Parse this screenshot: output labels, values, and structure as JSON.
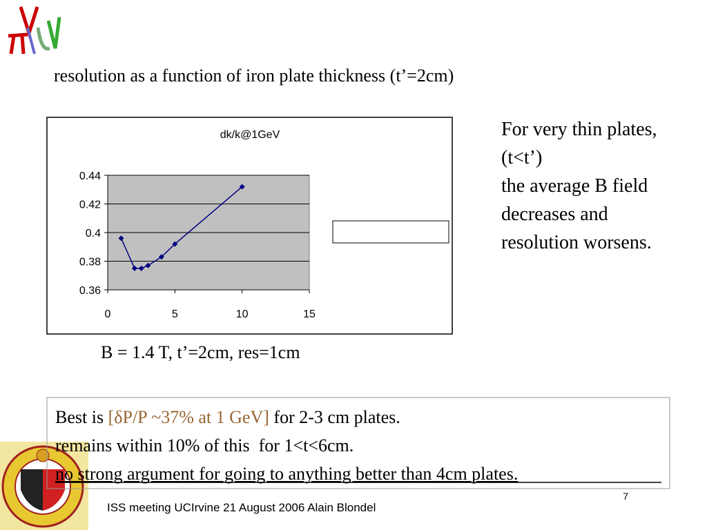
{
  "slide": {
    "title": "resolution as a function of iron plate thickness (t’=2cm)",
    "side_note": [
      "For very thin plates,",
      "(t<t’)",
      "the average B field",
      "decreases and",
      "resolution worsens."
    ],
    "caption": "B = 1.4 T, t’=2cm, res=1cm",
    "box": {
      "line1": [
        "Best is",
        "[δP/P ~37% at 1 GeV]",
        "for 2-3 cm plates."
      ],
      "line2": "remains within 10% of this  for 1<t<6cm.",
      "line3": "no strong argument for going to anything better than 4cm plates."
    },
    "footer": "ISS meeting UCIrvine 21 August 2006 Alain Blondel",
    "page_number": "7"
  },
  "chart_data": {
    "type": "line",
    "title": "dk/k@1GeV",
    "x": [
      1,
      2,
      2.5,
      3,
      4,
      5,
      10
    ],
    "series": [
      {
        "name": "dk/k@1GeV",
        "color": "#000080",
        "values": [
          0.396,
          0.375,
          0.375,
          0.377,
          0.383,
          0.392,
          0.432
        ]
      }
    ],
    "xlim": [
      0,
      15
    ],
    "xticks": [
      0,
      5,
      10,
      15
    ],
    "ylim": [
      0.36,
      0.44
    ],
    "yticks": [
      0.36,
      0.38,
      0.4,
      0.42,
      0.44
    ],
    "grid": true,
    "plot_background": "#c0c0c0",
    "legend": "right"
  }
}
